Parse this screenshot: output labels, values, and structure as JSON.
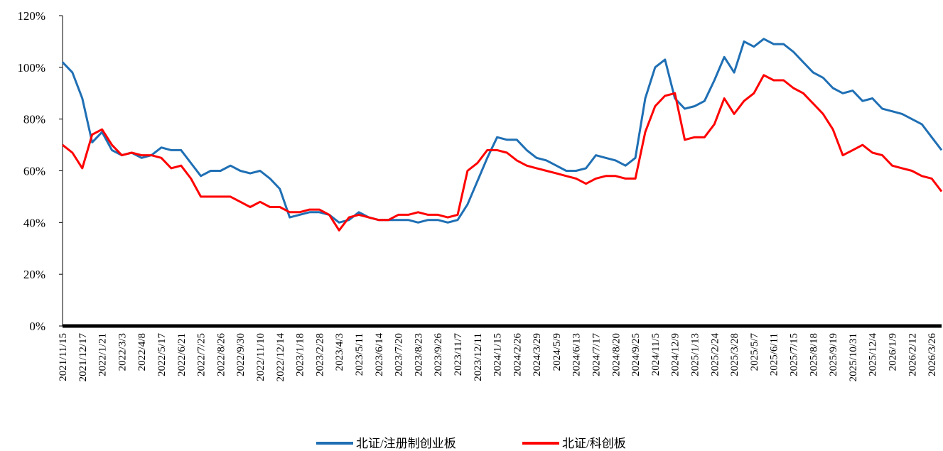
{
  "chart_data": {
    "type": "line",
    "categories": [
      "2021/11/15",
      null,
      "2021/12/17",
      null,
      "2022/1/21",
      null,
      "2022/3/3",
      null,
      "2022/4/8",
      null,
      "2022/5/17",
      null,
      "2022/6/21",
      null,
      "2022/7/25",
      null,
      "2022/8/26",
      null,
      "2022/9/30",
      null,
      "2022/11/10",
      null,
      "2022/12/14",
      null,
      "2023/1/18",
      null,
      "2023/2/28",
      null,
      "2023/4/3",
      null,
      "2023/5/11",
      null,
      "2023/6/14",
      null,
      "2023/7/20",
      null,
      "2023/8/23",
      null,
      "2023/9/26",
      null,
      "2023/11/7",
      null,
      "2023/12/11",
      null,
      "2024/1/15",
      null,
      "2024/2/26",
      null,
      "2024/3/29",
      null,
      "2024/5/9",
      null,
      "2024/6/13",
      null,
      "2024/7/17",
      null,
      "2024/8/20",
      null,
      "2024/9/25",
      null,
      "2024/11/5",
      null,
      "2024/12/9",
      null,
      "2025/1/13",
      null,
      "2025/2/24",
      null,
      "2025/3/28",
      null,
      "2025/5/7",
      null,
      "2025/6/11",
      null,
      "2025/7/15",
      null,
      "2025/8/18",
      null,
      "2025/9/19",
      null,
      "2025/10/31",
      null,
      "2025/12/4",
      null,
      "2026/1/9",
      null,
      "2026/2/12",
      null,
      "2026/3/26",
      null
    ],
    "series": [
      {
        "name": "北证/注册制创业板",
        "color": "#1f6fb4",
        "values": [
          102,
          98,
          88,
          71,
          75,
          68,
          66,
          67,
          65,
          66,
          69,
          68,
          68,
          63,
          58,
          60,
          60,
          62,
          60,
          59,
          60,
          57,
          53,
          42,
          43,
          44,
          44,
          43,
          40,
          41,
          44,
          42,
          41,
          41,
          41,
          41,
          40,
          41,
          41,
          40,
          41,
          47,
          56,
          65,
          73,
          72,
          72,
          68,
          65,
          64,
          62,
          60,
          60,
          61,
          66,
          65,
          64,
          62,
          65,
          88,
          100,
          103,
          88,
          84,
          85,
          87,
          95,
          104,
          98,
          110,
          108,
          111,
          109,
          109,
          106,
          102,
          98,
          96,
          92,
          90,
          91,
          87,
          88,
          84,
          83,
          82,
          80,
          78,
          73,
          68
        ]
      },
      {
        "name": "北证/科创板",
        "color": "#ff0000",
        "values": [
          70,
          67,
          61,
          74,
          76,
          70,
          66,
          67,
          66,
          66,
          65,
          61,
          62,
          57,
          50,
          50,
          50,
          50,
          48,
          46,
          48,
          46,
          46,
          44,
          44,
          45,
          45,
          43,
          37,
          42,
          43,
          42,
          41,
          41,
          43,
          43,
          44,
          43,
          43,
          42,
          43,
          60,
          63,
          68,
          68,
          67,
          64,
          62,
          61,
          60,
          59,
          58,
          57,
          55,
          57,
          58,
          58,
          57,
          57,
          75,
          85,
          89,
          90,
          72,
          73,
          73,
          78,
          88,
          82,
          87,
          90,
          97,
          95,
          95,
          92,
          90,
          86,
          82,
          76,
          66,
          68,
          70,
          67,
          66,
          62,
          61,
          60,
          58,
          57,
          52
        ]
      }
    ],
    "ylim": [
      0,
      120
    ],
    "yticks": [
      {
        "value": 0,
        "label": "0%"
      },
      {
        "value": 20,
        "label": "20%"
      },
      {
        "value": 40,
        "label": "40%"
      },
      {
        "value": 60,
        "label": "60%"
      },
      {
        "value": 80,
        "label": "80%"
      },
      {
        "value": 100,
        "label": "100%"
      },
      {
        "value": 120,
        "label": "120%"
      }
    ]
  }
}
